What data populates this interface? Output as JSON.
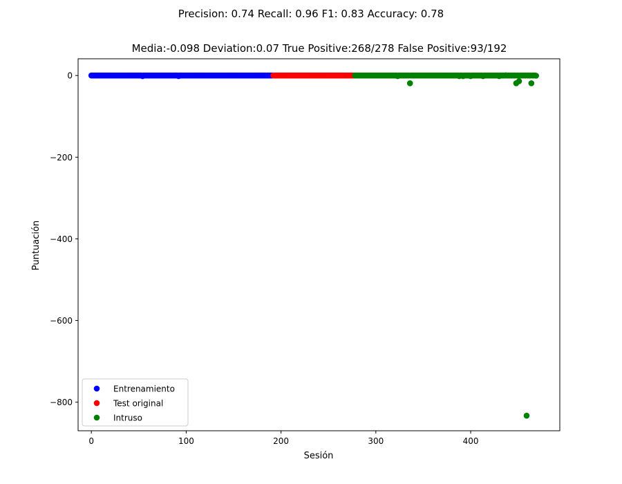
{
  "suptitle": "Precision: 0.74 Recall: 0.96 F1: 0.83 Accuracy: 0.78",
  "chart_data": {
    "type": "scatter",
    "title": "Media:-0.098 Deviation:0.07 True Positive:268/278 False Positive:93/192",
    "xlabel": "Sesión",
    "ylabel": "Puntuación",
    "xlim": [
      -14,
      494
    ],
    "ylim": [
      -870,
      41
    ],
    "xticks": [
      0,
      100,
      200,
      300,
      400
    ],
    "yticks": [
      0,
      -200,
      -400,
      -600,
      -800
    ],
    "grid": false,
    "legend_position": "lower-left",
    "series": [
      {
        "name": "Entrenamiento",
        "color": "#0000ff",
        "range": [
          0,
          191
        ],
        "y_default": 0,
        "outliers": [
          [
            54,
            -1.5
          ],
          [
            92,
            -1.5
          ]
        ]
      },
      {
        "name": "Test original",
        "color": "#ff0000",
        "range": [
          192,
          277
        ],
        "y_default": 0,
        "outliers": []
      },
      {
        "name": "Intruso",
        "color": "#008000",
        "range": [
          278,
          469
        ],
        "y_default": 0,
        "outliers": [
          [
            323,
            -1.5
          ],
          [
            336,
            -19
          ],
          [
            388,
            -1.5
          ],
          [
            392,
            -1.5
          ],
          [
            400,
            -1.5
          ],
          [
            413,
            -1.5
          ],
          [
            430,
            -1.5
          ],
          [
            437,
            0.5
          ],
          [
            448,
            -19
          ],
          [
            451,
            -14
          ],
          [
            459,
            -833
          ],
          [
            464,
            -19
          ],
          [
            469,
            -0.5
          ]
        ]
      }
    ]
  }
}
